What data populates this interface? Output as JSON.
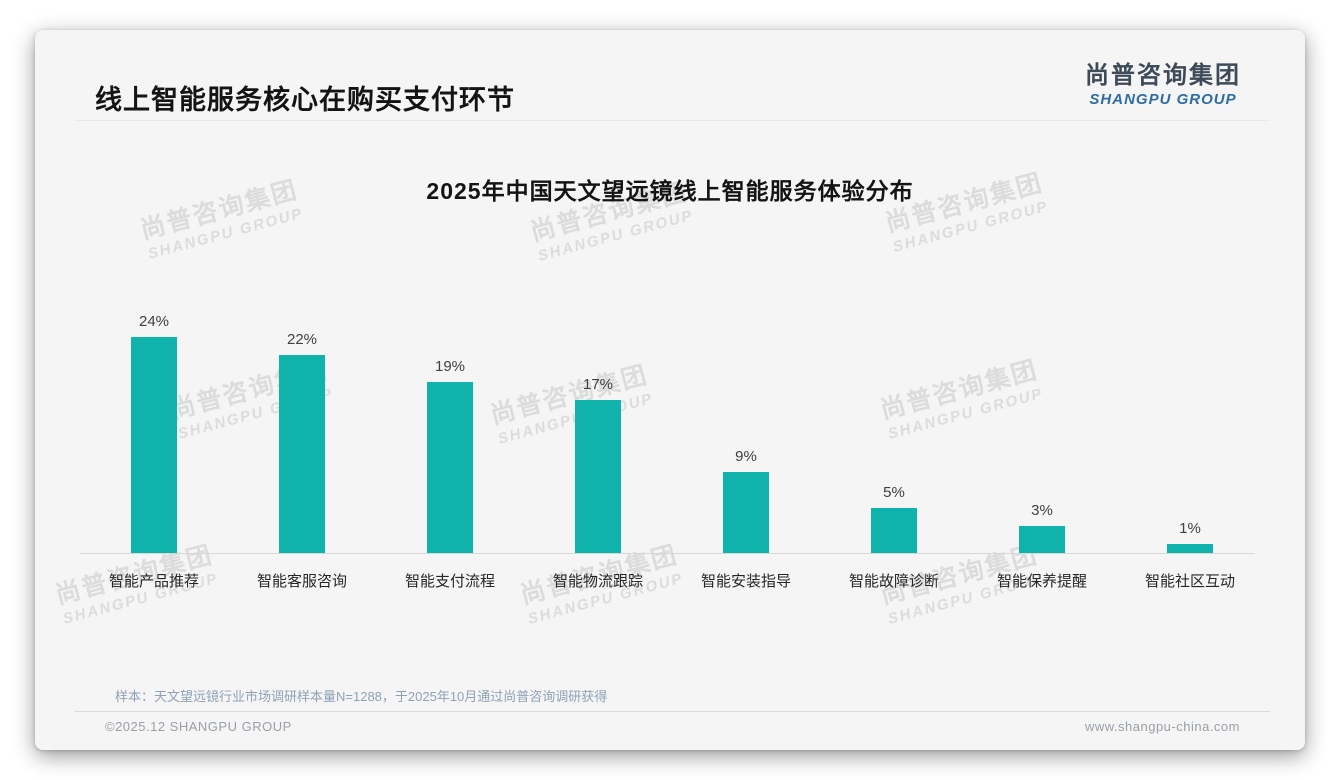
{
  "page": {
    "header_title": "线上智能服务核心在购买支付环节",
    "logo": {
      "cn": "尚普咨询集团",
      "en": "SHANGPU GROUP"
    },
    "watermark": {
      "line1": "尚普咨询集团",
      "line2": "SHANGPU GROUP"
    },
    "footnote": "样本：天文望远镜行业市场调研样本量N=1288，于2025年10月通过尚普咨询调研获得",
    "footer_left": "©2025.12 SHANGPU GROUP",
    "footer_right": "www.shangpu-china.com"
  },
  "chart_data": {
    "type": "bar",
    "title": "2025年中国天文望远镜线上智能服务体验分布",
    "categories": [
      "智能产品推荐",
      "智能客服咨询",
      "智能支付流程",
      "智能物流跟踪",
      "智能安装指导",
      "智能故障诊断",
      "智能保养提醒",
      "智能社区互动"
    ],
    "values": [
      24,
      22,
      19,
      17,
      9,
      5,
      3,
      1
    ],
    "value_labels": [
      "24%",
      "22%",
      "19%",
      "17%",
      "9%",
      "5%",
      "3%",
      "1%"
    ],
    "bar_color": "#0fb3ab",
    "xlabel": "",
    "ylabel": "",
    "ylim": [
      0,
      26
    ],
    "grid": false,
    "legend": false,
    "value_labels_position": "above-bars"
  }
}
